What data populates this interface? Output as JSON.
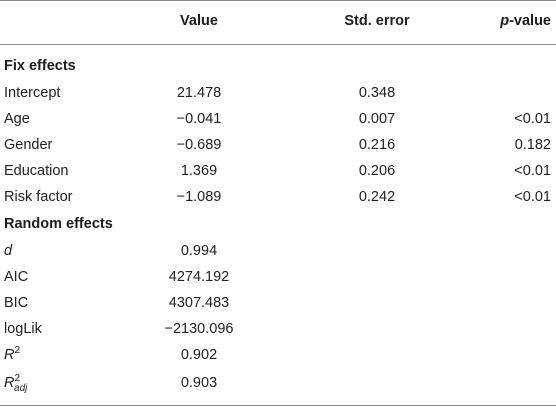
{
  "table": {
    "columns": {
      "value": "Value",
      "std_error": "Std. error",
      "p_value_italic": "p",
      "p_value_rest": "-value"
    },
    "sections": {
      "fixed": "Fix effects",
      "random": "Random effects"
    },
    "fixed_rows": [
      {
        "label": "Intercept",
        "value": "21.478",
        "se": "0.348",
        "p": ""
      },
      {
        "label": "Age",
        "value": "−0.041",
        "se": "0.007",
        "p": "<0.01"
      },
      {
        "label": "Gender",
        "value": "−0.689",
        "se": "0.216",
        "p": "0.182"
      },
      {
        "label": "Education",
        "value": "1.369",
        "se": "0.206",
        "p": "<0.01"
      },
      {
        "label": "Risk factor",
        "value": "−1.089",
        "se": "0.242",
        "p": "<0.01"
      }
    ],
    "random_rows": [
      {
        "label": "d",
        "value": "0.994"
      },
      {
        "label": "AIC",
        "value": "4274.192"
      },
      {
        "label": "BIC",
        "value": "4307.483"
      },
      {
        "label": "logLik",
        "value": "−2130.096"
      },
      {
        "label": "R",
        "label_sup": "2",
        "value": "0.902"
      },
      {
        "label": "R",
        "label_sub": "adj",
        "label_sup": "2",
        "value": "0.903"
      }
    ]
  }
}
